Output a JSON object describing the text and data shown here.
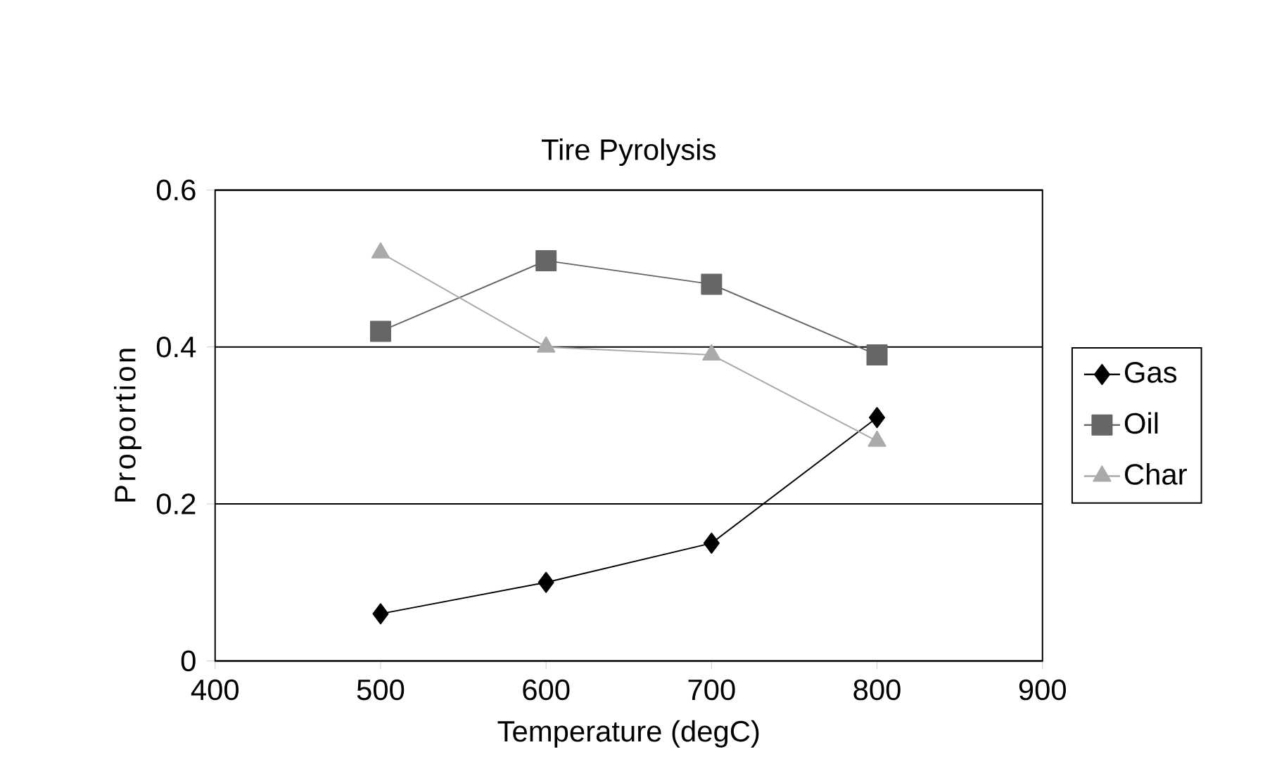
{
  "chart_data": {
    "type": "line",
    "title": "Tire Pyrolysis",
    "xlabel": "Temperature (degC)",
    "ylabel": "Proportion",
    "x": [
      500,
      600,
      700,
      800
    ],
    "series": [
      {
        "name": "Gas",
        "color": "#000000",
        "marker": "diamond",
        "values": [
          0.06,
          0.1,
          0.15,
          0.31
        ]
      },
      {
        "name": "Oil",
        "color": "#666666",
        "marker": "square",
        "values": [
          0.42,
          0.51,
          0.48,
          0.39
        ]
      },
      {
        "name": "Char",
        "color": "#aaaaaa",
        "marker": "triangle",
        "values": [
          0.52,
          0.4,
          0.39,
          0.28
        ]
      }
    ],
    "xlim": [
      400,
      900
    ],
    "xticks": [
      400,
      500,
      600,
      700,
      800,
      900
    ],
    "ylim": [
      0,
      0.6
    ],
    "yticks": [
      0,
      0.2,
      0.4,
      0.6
    ],
    "grid": "y",
    "legend": "right",
    "line_style": "solid"
  }
}
